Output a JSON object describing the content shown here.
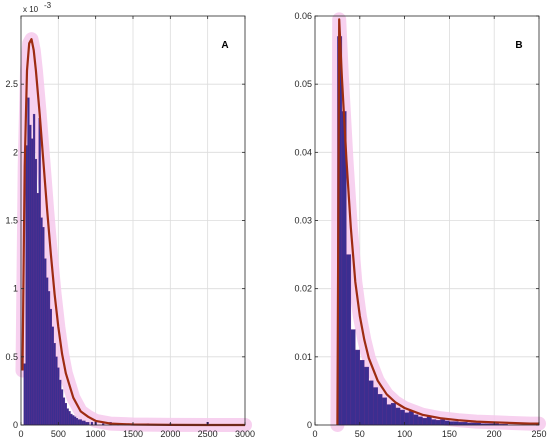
{
  "colors": {
    "bar": "#3b2e90",
    "bar_edge": "#5a2d8c",
    "fit": "#9e2b12",
    "band": "#f6c9ec",
    "grid": "#dcdcdc",
    "axis": "#262626"
  },
  "chart_data": [
    {
      "type": "bar",
      "panel_label": "A",
      "exponent_label": "x 10",
      "exponent_power": "-3",
      "xlim": [
        0,
        3000
      ],
      "ylim": [
        0,
        0.003
      ],
      "xticks": [
        0,
        500,
        1000,
        1500,
        2000,
        2500,
        3000
      ],
      "xtick_labels": [
        "0",
        "500",
        "1000",
        "1500",
        "2000",
        "2500",
        "3000"
      ],
      "yticks": [
        0,
        0.0005,
        0.001,
        0.0015,
        0.002,
        0.0025
      ],
      "ytick_labels": [
        "0",
        "0.5",
        "1",
        "1.5",
        "2",
        "2.5"
      ],
      "grid": true,
      "bin_width": 25,
      "bins_x": [
        50,
        75,
        100,
        125,
        150,
        175,
        200,
        225,
        250,
        275,
        300,
        325,
        350,
        375,
        400,
        425,
        450,
        475,
        500,
        525,
        550,
        575,
        600,
        625,
        650,
        675,
        700,
        725,
        750,
        775,
        800,
        825,
        850,
        875,
        900,
        950,
        1000,
        1100,
        1200,
        1300,
        1400,
        1500,
        1700,
        2000,
        2500
      ],
      "values": [
        0.00045,
        0.00205,
        0.0024,
        0.0022,
        0.0021,
        0.00228,
        0.00195,
        0.0017,
        0.00225,
        0.00152,
        0.00145,
        0.00122,
        0.00108,
        0.00098,
        0.00085,
        0.00072,
        0.0006,
        0.0005,
        0.00042,
        0.00033,
        0.00026,
        0.0002,
        0.00016,
        0.00012,
        0.0001,
        8e-05,
        7e-05,
        6e-05,
        5e-05,
        4e-05,
        4e-05,
        3e-05,
        3e-05,
        2e-05,
        2e-05,
        2e-05,
        2e-05,
        1e-05,
        2e-05,
        1e-05,
        1e-05,
        1e-05,
        1e-05,
        1e-05,
        2e-05
      ],
      "fit_curve": {
        "x": [
          20,
          50,
          80,
          110,
          140,
          170,
          200,
          250,
          300,
          350,
          400,
          450,
          500,
          550,
          600,
          700,
          800,
          900,
          1000,
          1200,
          1500,
          2000,
          2500,
          3000
        ],
        "y": [
          0.0004,
          0.0019,
          0.0026,
          0.0028,
          0.00283,
          0.00275,
          0.0026,
          0.00228,
          0.00193,
          0.00158,
          0.00125,
          0.00096,
          0.00072,
          0.00052,
          0.00038,
          0.0002,
          0.0001,
          6e-05,
          3e-05,
          1e-05,
          4e-06,
          1e-06,
          0,
          0
        ]
      }
    },
    {
      "type": "bar",
      "panel_label": "B",
      "xlim": [
        0,
        250
      ],
      "ylim": [
        0,
        0.06
      ],
      "xticks": [
        0,
        50,
        100,
        150,
        200,
        250
      ],
      "xtick_labels": [
        "0",
        "50",
        "100",
        "150",
        "200",
        "250"
      ],
      "yticks": [
        0,
        0.01,
        0.02,
        0.03,
        0.04,
        0.05,
        0.06
      ],
      "ytick_labels": [
        "0",
        "0.01",
        "0.02",
        "0.03",
        "0.04",
        "0.05",
        "0.06"
      ],
      "grid": true,
      "bin_width": 5,
      "bins_x": [
        27.5,
        32.5,
        37.5,
        42.5,
        47.5,
        52.5,
        57.5,
        62.5,
        67.5,
        72.5,
        77.5,
        82.5,
        87.5,
        92.5,
        97.5,
        102.5,
        107.5,
        112.5,
        117.5,
        122.5,
        127.5,
        132.5,
        137.5,
        142.5,
        147.5,
        152.5,
        157.5,
        162.5,
        167.5,
        172.5,
        177.5,
        182.5,
        187.5,
        192.5,
        197.5,
        202.5,
        207.5,
        212.5
      ],
      "values": [
        0.057,
        0.046,
        0.025,
        0.014,
        0.011,
        0.0095,
        0.0085,
        0.0065,
        0.0055,
        0.0045,
        0.004,
        0.003,
        0.0032,
        0.0025,
        0.0022,
        0.0018,
        0.002,
        0.0015,
        0.0012,
        0.001,
        0.0012,
        0.0008,
        0.0007,
        0.0008,
        0.0006,
        0.0005,
        0.0005,
        0.0004,
        0.0004,
        0.0003,
        0.0003,
        0.0003,
        0.0002,
        0.0002,
        0.0002,
        0.0002,
        0.0001,
        0.0001
      ],
      "fit_curve": {
        "x": [
          25,
          27,
          30,
          35,
          40,
          45,
          50,
          55,
          60,
          70,
          80,
          90,
          100,
          120,
          140,
          160,
          180,
          200,
          220,
          240,
          250
        ],
        "y": [
          0,
          0.0595,
          0.051,
          0.039,
          0.029,
          0.021,
          0.016,
          0.0125,
          0.0098,
          0.0065,
          0.0045,
          0.0033,
          0.0025,
          0.0015,
          0.001,
          0.0007,
          0.0005,
          0.0004,
          0.0003,
          0.0002,
          0.0002
        ]
      }
    }
  ]
}
